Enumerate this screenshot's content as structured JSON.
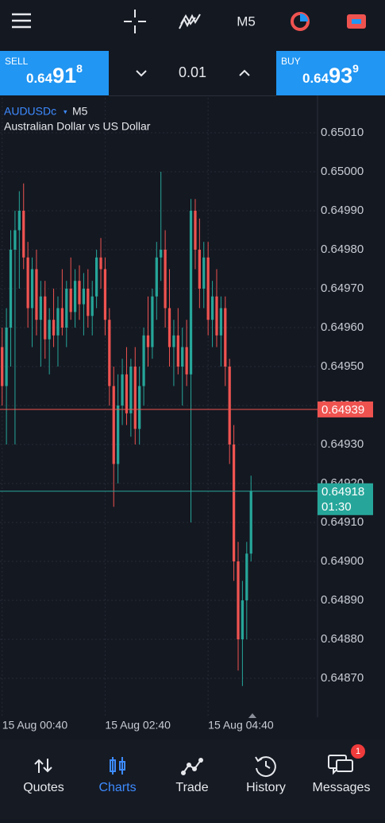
{
  "toolbar": {
    "timeframe": "M5"
  },
  "quote_bar": {
    "sell": {
      "label": "SELL",
      "price_prefix": "0.64",
      "price_pips": "91",
      "price_point": "8"
    },
    "lot": "0.01",
    "buy": {
      "label": "BUY",
      "price_prefix": "0.64",
      "price_pips": "93",
      "price_point": "9"
    }
  },
  "chart_data": {
    "type": "candlestick",
    "symbol": "AUDUSDc",
    "timeframe": "M5",
    "subtitle": "Australian Dollar vs US Dollar",
    "open": [
      0.64955,
      0.64945,
      0.6496,
      0.6498,
      0.64985,
      0.6499,
      0.64978,
      0.64965,
      0.64975,
      0.64962,
      0.64968,
      0.64957,
      0.64962,
      0.64958,
      0.64965,
      0.6496,
      0.6497,
      0.64964,
      0.64972,
      0.64966,
      0.6497,
      0.64963,
      0.64968,
      0.64978,
      0.64975,
      0.64962,
      0.64945,
      0.64925,
      0.6494,
      0.64948,
      0.64938,
      0.6495,
      0.64934,
      0.64945,
      0.64958,
      0.64955,
      0.64968,
      0.64978,
      0.6498,
      0.64965,
      0.64955,
      0.64958,
      0.6495,
      0.64955,
      0.64948,
      0.6499,
      0.6498,
      0.6497,
      0.64978,
      0.64962,
      0.64968,
      0.64958,
      0.64965,
      0.6495,
      0.6493,
      0.649,
      0.6488,
      0.6489,
      0.64902
    ],
    "high": [
      0.6496,
      0.64965,
      0.64985,
      0.6499,
      0.64995,
      0.64997,
      0.64982,
      0.64978,
      0.6498,
      0.64972,
      0.64972,
      0.64965,
      0.6497,
      0.64968,
      0.64975,
      0.64972,
      0.64978,
      0.64975,
      0.64976,
      0.64974,
      0.64975,
      0.64972,
      0.6498,
      0.64983,
      0.64978,
      0.64965,
      0.6495,
      0.64948,
      0.64952,
      0.64955,
      0.64952,
      0.64955,
      0.6495,
      0.6496,
      0.64968,
      0.6497,
      0.64982,
      0.65,
      0.64985,
      0.64975,
      0.64962,
      0.64965,
      0.6496,
      0.64962,
      0.64993,
      0.64993,
      0.64988,
      0.64982,
      0.64982,
      0.64972,
      0.64975,
      0.64968,
      0.64968,
      0.64952,
      0.64935,
      0.64905,
      0.64895,
      0.64905,
      0.64922
    ],
    "low": [
      0.6494,
      0.6493,
      0.6495,
      0.6493,
      0.6497,
      0.64975,
      0.6496,
      0.64955,
      0.64958,
      0.6495,
      0.64952,
      0.64948,
      0.64955,
      0.6495,
      0.64958,
      0.64955,
      0.64962,
      0.6496,
      0.64962,
      0.64958,
      0.6496,
      0.64958,
      0.64965,
      0.6497,
      0.64958,
      0.6494,
      0.64914,
      0.6492,
      0.64935,
      0.64935,
      0.64932,
      0.6493,
      0.6493,
      0.6494,
      0.6495,
      0.64952,
      0.64962,
      0.64972,
      0.6496,
      0.6495,
      0.64945,
      0.64948,
      0.6494,
      0.64945,
      0.6491,
      0.64975,
      0.64965,
      0.64965,
      0.64958,
      0.64955,
      0.64955,
      0.6495,
      0.64945,
      0.64925,
      0.64895,
      0.64872,
      0.64868,
      0.6488,
      0.649
    ],
    "close": [
      0.64945,
      0.6496,
      0.6498,
      0.64985,
      0.6499,
      0.64978,
      0.64965,
      0.64975,
      0.64962,
      0.64968,
      0.64957,
      0.64962,
      0.64958,
      0.64965,
      0.6496,
      0.6497,
      0.64964,
      0.64972,
      0.64966,
      0.6497,
      0.64963,
      0.64968,
      0.64978,
      0.64975,
      0.64962,
      0.64945,
      0.64925,
      0.6494,
      0.64948,
      0.64938,
      0.6495,
      0.64934,
      0.64945,
      0.64958,
      0.64955,
      0.64968,
      0.64978,
      0.6498,
      0.64965,
      0.64955,
      0.64958,
      0.6495,
      0.64955,
      0.64948,
      0.6499,
      0.6498,
      0.6497,
      0.64978,
      0.64962,
      0.64968,
      0.64958,
      0.64965,
      0.6495,
      0.6493,
      0.649,
      0.6488,
      0.6489,
      0.64902,
      0.64918
    ],
    "up_color": "#26a69a",
    "down_color": "#ef5350",
    "ylim": [
      0.6486,
      0.6502
    ],
    "yticks": [
      {
        "value": 0.6487,
        "label": "0.64870"
      },
      {
        "value": 0.6488,
        "label": "0.64880"
      },
      {
        "value": 0.6489,
        "label": "0.64890"
      },
      {
        "value": 0.649,
        "label": "0.64900"
      },
      {
        "value": 0.6491,
        "label": "0.64910"
      },
      {
        "value": 0.6492,
        "label": "0.64920"
      },
      {
        "value": 0.6493,
        "label": "0.64930"
      },
      {
        "value": 0.6494,
        "label": "0.64940"
      },
      {
        "value": 0.6495,
        "label": "0.64950"
      },
      {
        "value": 0.6496,
        "label": "0.64960"
      },
      {
        "value": 0.6497,
        "label": "0.64970"
      },
      {
        "value": 0.6498,
        "label": "0.64980"
      },
      {
        "value": 0.6499,
        "label": "0.64990"
      },
      {
        "value": 0.65,
        "label": "0.65000"
      },
      {
        "value": 0.6501,
        "label": "0.65010"
      }
    ],
    "xlim": [
      -0.5,
      73.5
    ],
    "xticks": [
      {
        "value": 0,
        "label": "15 Aug 00:40"
      },
      {
        "value": 24,
        "label": "15 Aug 02:40"
      },
      {
        "value": 48,
        "label": "15 Aug 04:40"
      }
    ],
    "grid": true,
    "ask": 0.64939,
    "ask_color": "#ef5350",
    "bid": 0.64918,
    "bid_color": "#26a69a",
    "countdown": "01:30"
  },
  "nav": {
    "items": [
      "Quotes",
      "Charts",
      "Trade",
      "History",
      "Messages"
    ],
    "active": 1,
    "badge": 1
  }
}
